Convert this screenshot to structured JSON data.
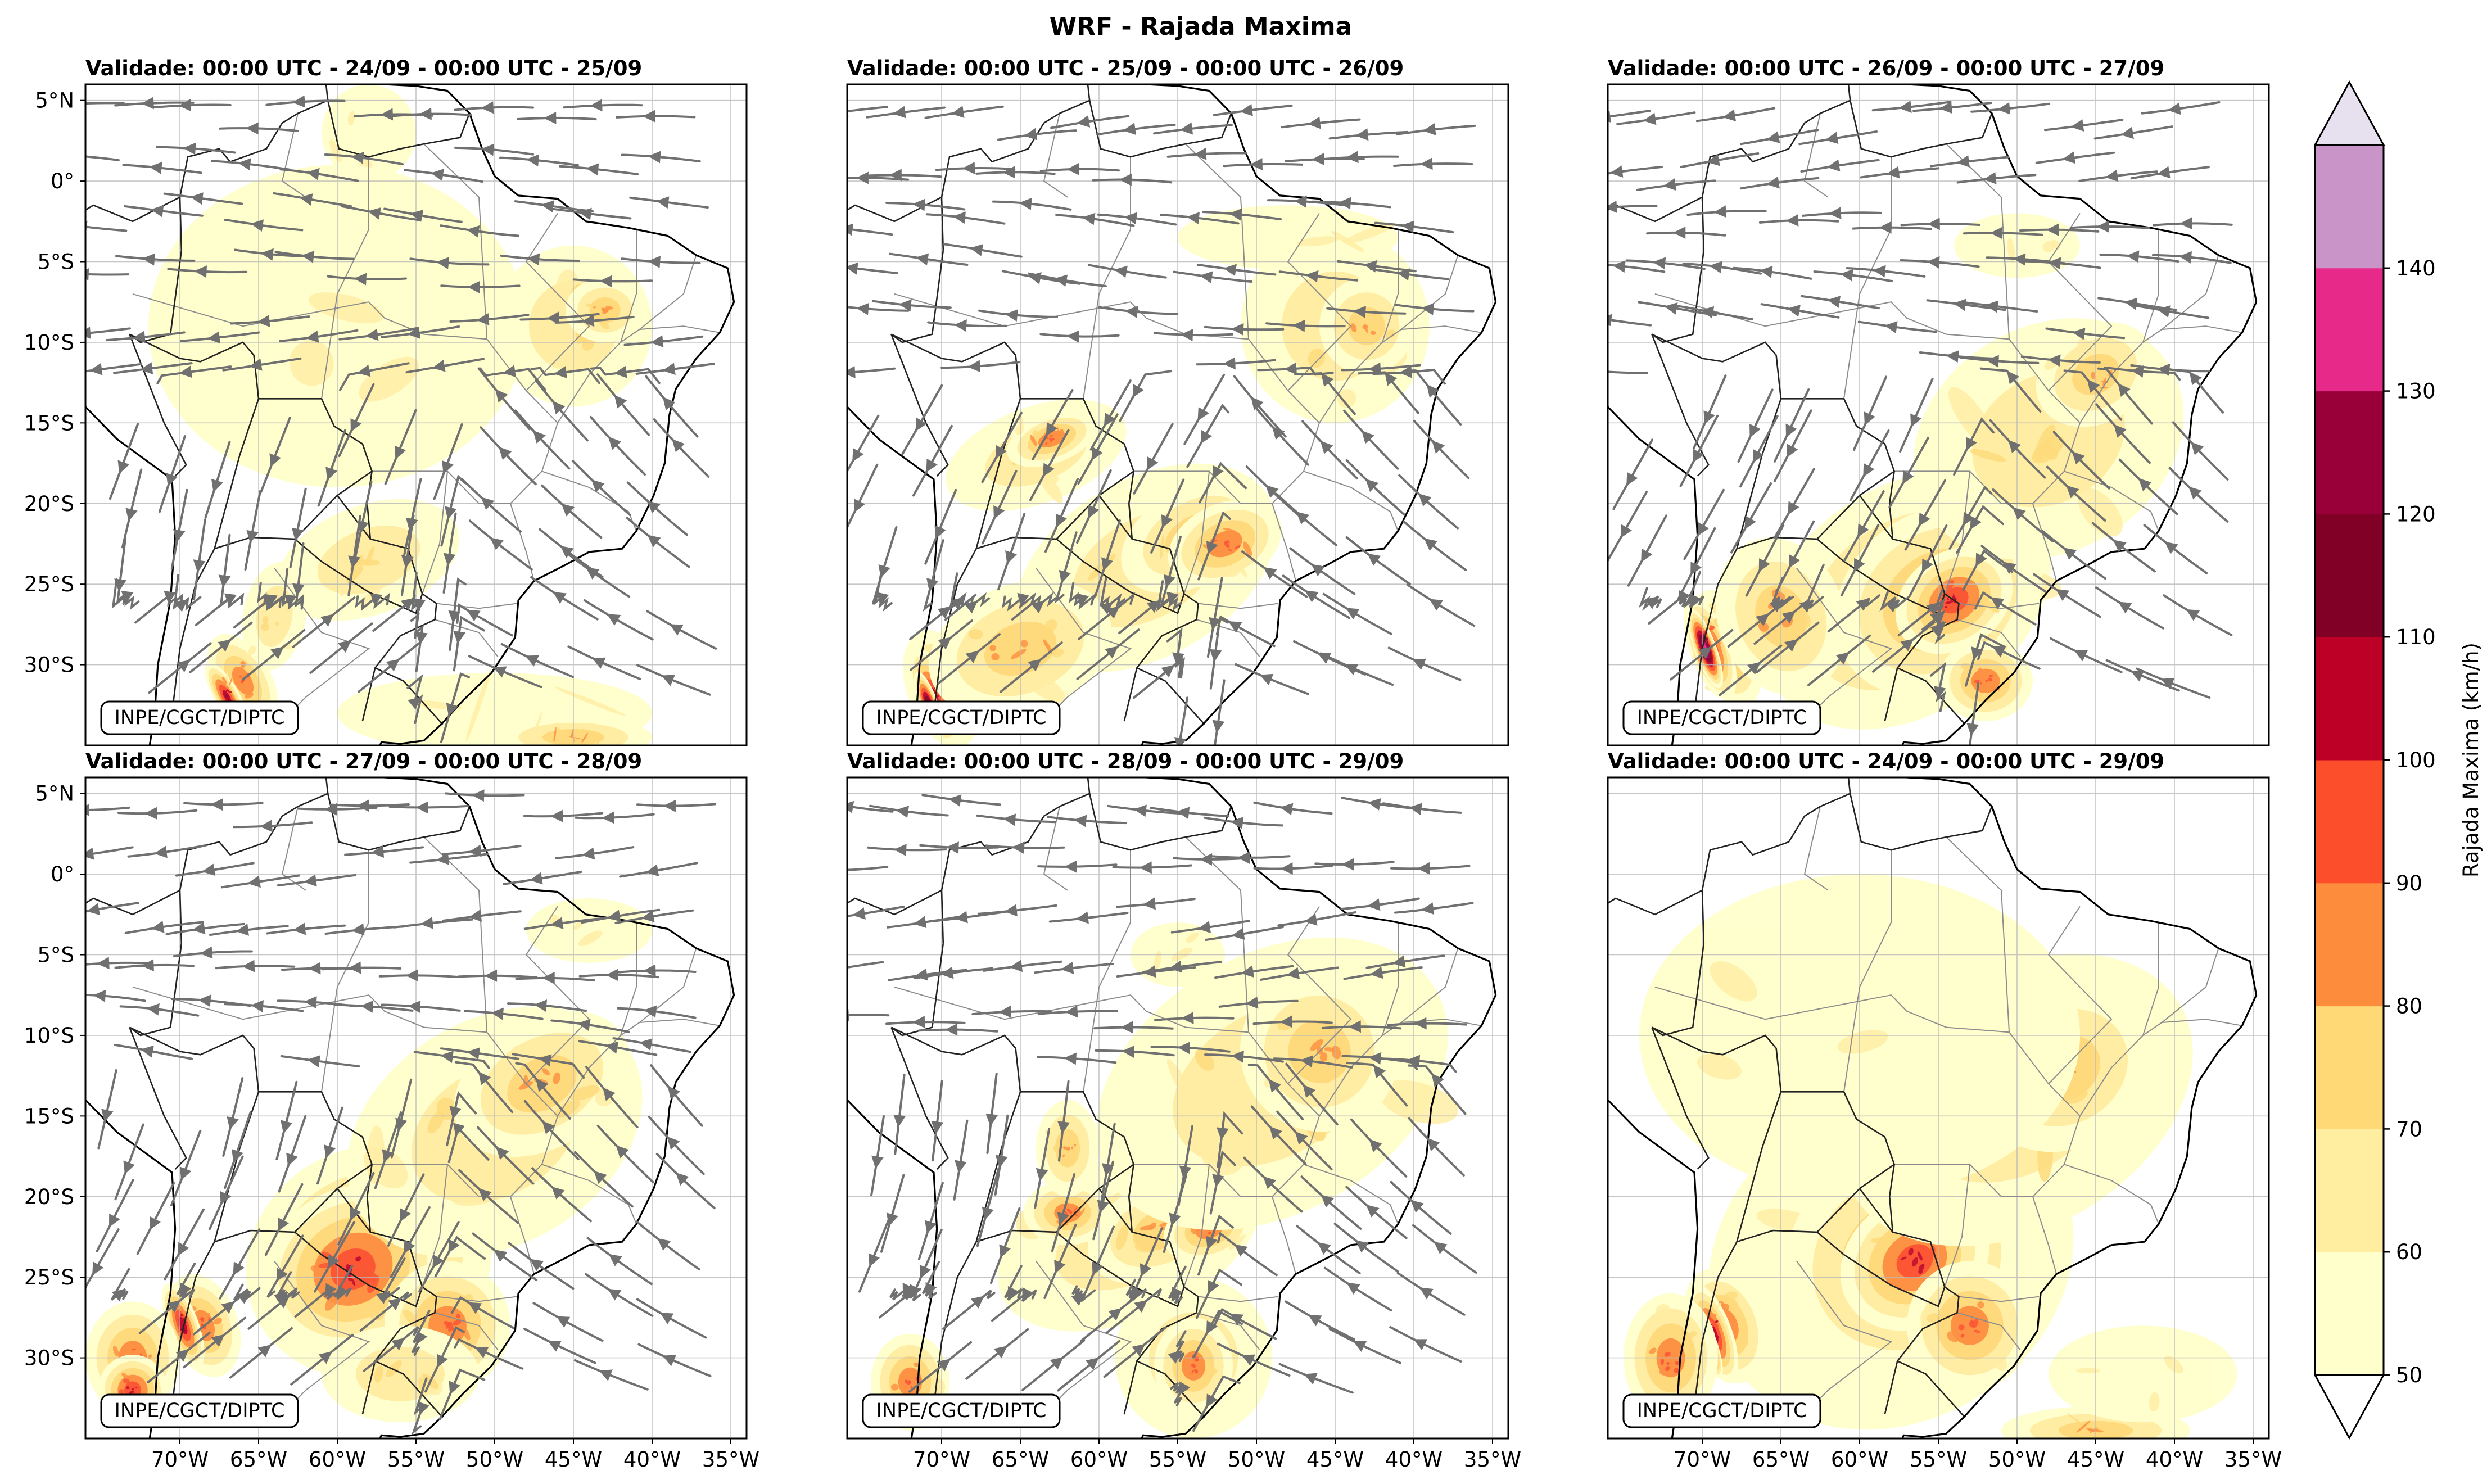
{
  "title": "WRF - Rajada Maxima",
  "credit": "INPE/CGCT/DIPTC",
  "panels": [
    {
      "title": "Validade: 00:00 UTC - 24/09 - 00:00 UTC - 25/09",
      "streamlines": true
    },
    {
      "title": "Validade: 00:00 UTC - 25/09 - 00:00 UTC - 26/09",
      "streamlines": true
    },
    {
      "title": "Validade: 00:00 UTC - 26/09 - 00:00 UTC - 27/09",
      "streamlines": true
    },
    {
      "title": "Validade: 00:00 UTC - 27/09 - 00:00 UTC - 28/09",
      "streamlines": true
    },
    {
      "title": "Validade: 00:00 UTC - 28/09 - 00:00 UTC - 29/09",
      "streamlines": true
    },
    {
      "title": "Validade: 00:00 UTC - 24/09 - 00:00 UTC - 29/09",
      "streamlines": false
    }
  ],
  "lat_ticks": [
    "5°N",
    "0°",
    "5°S",
    "10°S",
    "15°S",
    "20°S",
    "25°S",
    "30°S"
  ],
  "lon_ticks": [
    "70°W",
    "65°W",
    "60°W",
    "55°W",
    "50°W",
    "45°W",
    "40°W",
    "35°W"
  ],
  "colorbar": {
    "label": "Rajada Maxima (km/h)",
    "ticks": [
      "50",
      "60",
      "70",
      "80",
      "90",
      "100",
      "110",
      "120",
      "130",
      "140"
    ],
    "colors": [
      "#ffffcc",
      "#ffeda0",
      "#fed976",
      "#fd8d3c",
      "#fc4e2a",
      "#bd0026",
      "#800026",
      "#99003a",
      "#e7298a",
      "#c994c7"
    ],
    "over_color": "#e7e1ef",
    "under_color": "#ffffff"
  }
}
